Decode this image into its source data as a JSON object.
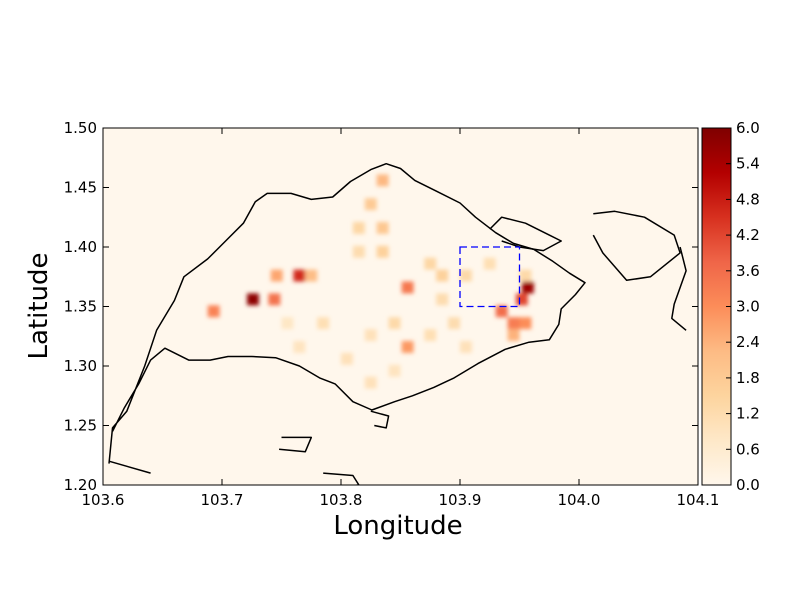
{
  "chart_data": {
    "type": "heatmap",
    "title": "",
    "xlabel": "Longitude",
    "ylabel": "Latitude",
    "xlim": [
      103.6,
      104.1
    ],
    "ylim": [
      1.2,
      1.5
    ],
    "xticks": [
      "103.6",
      "103.7",
      "103.8",
      "103.9",
      "104.0",
      "104.1"
    ],
    "yticks": [
      "1.20",
      "1.25",
      "1.30",
      "1.35",
      "1.40",
      "1.45",
      "1.50"
    ],
    "colorbar": {
      "range": [
        0.0,
        6.0
      ],
      "ticks": [
        "0.0",
        "0.6",
        "1.2",
        "1.8",
        "2.4",
        "3.0",
        "3.6",
        "4.2",
        "4.8",
        "5.4",
        "6.0"
      ],
      "colormap": "OrRd",
      "stops": [
        "#fff7ec",
        "#fee8c8",
        "#fdd49e",
        "#fdbb84",
        "#fc8d59",
        "#ef6548",
        "#d7301f",
        "#b30000",
        "#7f0000"
      ]
    },
    "grid": false,
    "highlight_box": {
      "lon": [
        103.9,
        103.95
      ],
      "lat": [
        1.35,
        1.4
      ],
      "color": "#0000ff",
      "style": "dashed"
    },
    "hotspots": [
      {
        "lon": 103.726,
        "lat": 1.356,
        "v": 5.8
      },
      {
        "lon": 103.693,
        "lat": 1.346,
        "v": 3.2
      },
      {
        "lon": 103.744,
        "lat": 1.356,
        "v": 3.5
      },
      {
        "lon": 103.765,
        "lat": 1.376,
        "v": 4.6
      },
      {
        "lon": 103.746,
        "lat": 1.376,
        "v": 2.6
      },
      {
        "lon": 103.775,
        "lat": 1.376,
        "v": 2.2
      },
      {
        "lon": 103.856,
        "lat": 1.366,
        "v": 3.4
      },
      {
        "lon": 103.856,
        "lat": 1.316,
        "v": 2.8
      },
      {
        "lon": 103.957,
        "lat": 1.366,
        "v": 5.6
      },
      {
        "lon": 103.952,
        "lat": 1.356,
        "v": 4.2
      },
      {
        "lon": 103.935,
        "lat": 1.346,
        "v": 3.6
      },
      {
        "lon": 103.945,
        "lat": 1.336,
        "v": 3.3
      },
      {
        "lon": 103.955,
        "lat": 1.336,
        "v": 3.0
      },
      {
        "lon": 103.945,
        "lat": 1.326,
        "v": 2.4
      },
      {
        "lon": 103.835,
        "lat": 1.456,
        "v": 2.3
      },
      {
        "lon": 103.825,
        "lat": 1.436,
        "v": 1.8
      },
      {
        "lon": 103.835,
        "lat": 1.416,
        "v": 1.9
      },
      {
        "lon": 103.815,
        "lat": 1.416,
        "v": 1.4
      },
      {
        "lon": 103.835,
        "lat": 1.396,
        "v": 1.6
      },
      {
        "lon": 103.815,
        "lat": 1.396,
        "v": 1.2
      },
      {
        "lon": 103.875,
        "lat": 1.386,
        "v": 1.4
      },
      {
        "lon": 103.885,
        "lat": 1.376,
        "v": 1.6
      },
      {
        "lon": 103.905,
        "lat": 1.376,
        "v": 1.3
      },
      {
        "lon": 103.885,
        "lat": 1.356,
        "v": 1.2
      },
      {
        "lon": 103.895,
        "lat": 1.336,
        "v": 1.2
      },
      {
        "lon": 103.875,
        "lat": 1.326,
        "v": 1.1
      },
      {
        "lon": 103.925,
        "lat": 1.386,
        "v": 1.1
      },
      {
        "lon": 103.845,
        "lat": 1.336,
        "v": 1.3
      },
      {
        "lon": 103.825,
        "lat": 1.326,
        "v": 1.0
      },
      {
        "lon": 103.805,
        "lat": 1.306,
        "v": 1.0
      },
      {
        "lon": 103.825,
        "lat": 1.286,
        "v": 1.0
      },
      {
        "lon": 103.785,
        "lat": 1.336,
        "v": 1.1
      },
      {
        "lon": 103.765,
        "lat": 1.316,
        "v": 0.9
      },
      {
        "lon": 103.755,
        "lat": 1.336,
        "v": 0.8
      },
      {
        "lon": 103.905,
        "lat": 1.316,
        "v": 1.0
      },
      {
        "lon": 103.955,
        "lat": 1.376,
        "v": 1.3
      },
      {
        "lon": 103.845,
        "lat": 1.296,
        "v": 0.9
      }
    ],
    "coastline_outline": [
      [
        103.605,
        1.218
      ],
      [
        103.608,
        1.248
      ],
      [
        103.62,
        1.262
      ],
      [
        103.635,
        1.3
      ],
      [
        103.645,
        1.33
      ],
      [
        103.66,
        1.355
      ],
      [
        103.668,
        1.375
      ],
      [
        103.688,
        1.39
      ],
      [
        103.703,
        1.405
      ],
      [
        103.718,
        1.42
      ],
      [
        103.728,
        1.438
      ],
      [
        103.738,
        1.445
      ],
      [
        103.758,
        1.445
      ],
      [
        103.775,
        1.44
      ],
      [
        103.793,
        1.442
      ],
      [
        103.808,
        1.455
      ],
      [
        103.825,
        1.465
      ],
      [
        103.838,
        1.47
      ],
      [
        103.85,
        1.466
      ],
      [
        103.862,
        1.456
      ],
      [
        103.88,
        1.447
      ],
      [
        103.9,
        1.437
      ],
      [
        103.913,
        1.425
      ],
      [
        103.93,
        1.412
      ],
      [
        103.945,
        1.403
      ],
      [
        103.962,
        1.398
      ],
      [
        103.978,
        1.388
      ],
      [
        103.992,
        1.378
      ],
      [
        104.005,
        1.37
      ],
      [
        103.997,
        1.36
      ],
      [
        103.985,
        1.348
      ],
      [
        103.983,
        1.335
      ],
      [
        103.975,
        1.322
      ],
      [
        103.958,
        1.32
      ],
      [
        103.938,
        1.314
      ],
      [
        103.915,
        1.302
      ],
      [
        103.895,
        1.29
      ],
      [
        103.878,
        1.282
      ],
      [
        103.86,
        1.275
      ],
      [
        103.845,
        1.27
      ],
      [
        103.826,
        1.263
      ],
      [
        103.81,
        1.27
      ],
      [
        103.795,
        1.285
      ],
      [
        103.782,
        1.29
      ],
      [
        103.765,
        1.3
      ],
      [
        103.745,
        1.307
      ],
      [
        103.725,
        1.308
      ],
      [
        103.705,
        1.308
      ],
      [
        103.69,
        1.305
      ],
      [
        103.672,
        1.305
      ],
      [
        103.652,
        1.315
      ],
      [
        103.64,
        1.305
      ],
      [
        103.63,
        1.285
      ],
      [
        103.618,
        1.265
      ],
      [
        103.608,
        1.245
      ]
    ],
    "islands": [
      [
        [
          103.925,
          1.415
        ],
        [
          103.935,
          1.425
        ],
        [
          103.955,
          1.42
        ],
        [
          103.975,
          1.41
        ],
        [
          103.985,
          1.405
        ],
        [
          103.97,
          1.397
        ],
        [
          103.95,
          1.4
        ],
        [
          103.935,
          1.405
        ]
      ],
      [
        [
          104.012,
          1.428
        ],
        [
          104.03,
          1.43
        ],
        [
          104.055,
          1.425
        ],
        [
          104.08,
          1.41
        ],
        [
          104.085,
          1.395
        ],
        [
          104.06,
          1.375
        ],
        [
          104.04,
          1.372
        ],
        [
          104.02,
          1.395
        ],
        [
          104.012,
          1.41
        ]
      ],
      [
        [
          104.085,
          1.4
        ],
        [
          104.09,
          1.38
        ],
        [
          104.08,
          1.352
        ],
        [
          104.078,
          1.34
        ],
        [
          104.09,
          1.33
        ]
      ],
      [
        [
          103.75,
          1.24
        ],
        [
          103.775,
          1.24
        ],
        [
          103.77,
          1.228
        ],
        [
          103.748,
          1.23
        ]
      ],
      [
        [
          103.785,
          1.21
        ],
        [
          103.81,
          1.208
        ],
        [
          103.815,
          1.2
        ],
        [
          103.79,
          1.198
        ]
      ],
      [
        [
          103.825,
          1.262
        ],
        [
          103.84,
          1.258
        ],
        [
          103.838,
          1.248
        ],
        [
          103.828,
          1.25
        ]
      ],
      [
        [
          103.605,
          1.22
        ],
        [
          103.64,
          1.21
        ]
      ]
    ]
  }
}
